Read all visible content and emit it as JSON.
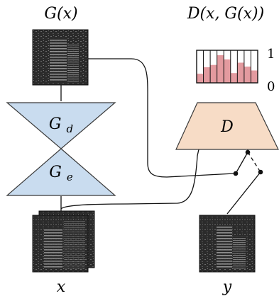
{
  "labels": {
    "generated_output": "G(x)",
    "discriminator_output": "D(x, G(x))",
    "decoder": "Gd",
    "encoder": "Ge",
    "discriminator": "D",
    "input": "x",
    "target": "y",
    "scale_top": "1",
    "scale_bottom": "0"
  },
  "patch_scores": [
    0.28,
    0.48,
    0.55,
    0.85,
    0.72,
    0.3,
    0.62,
    0.5,
    0.38
  ],
  "colors": {
    "generator_fill": "#c9dcef",
    "generator_stroke": "#3a3a3a",
    "discriminator_fill": "#f7dcc6",
    "patch_fill": "#e39a9f",
    "line": "#111111"
  }
}
